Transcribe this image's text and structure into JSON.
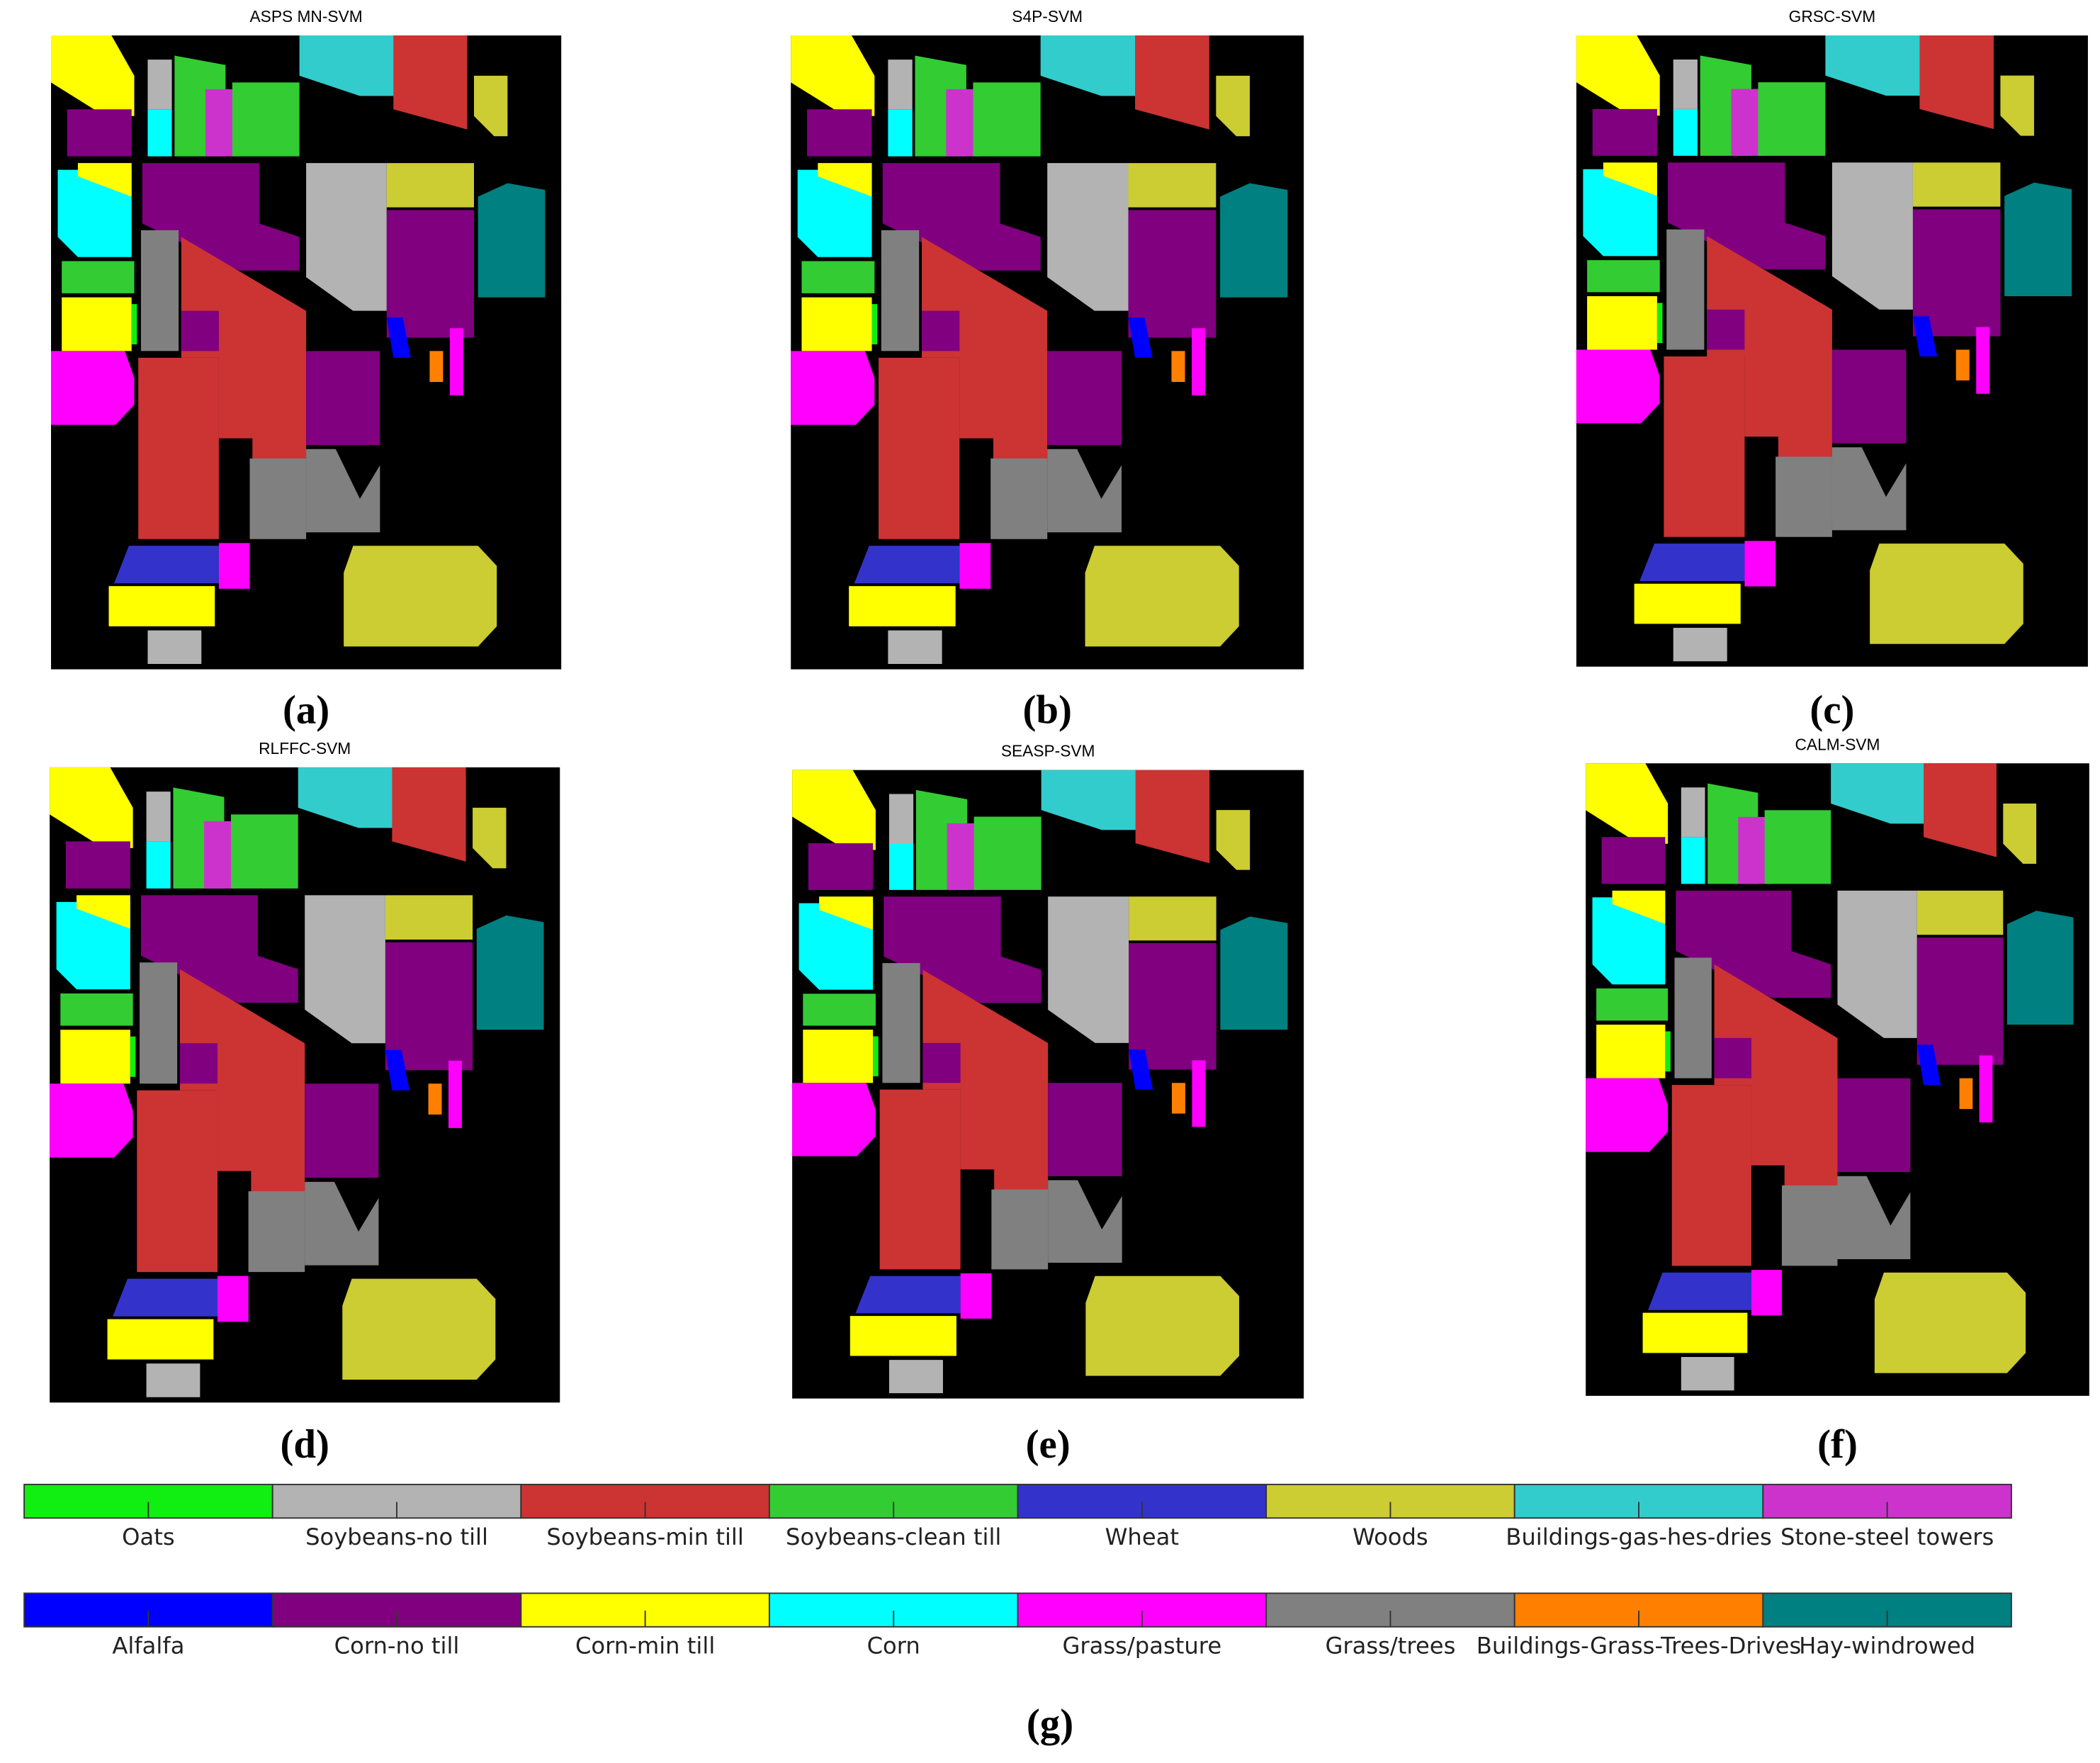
{
  "panels": [
    {
      "title": "ASPS MN-SVM",
      "caption": "(a)"
    },
    {
      "title": "S4P-SVM",
      "caption": "(b)"
    },
    {
      "title": "GRSC-SVM",
      "caption": "(c)"
    },
    {
      "title": "RLFFC-SVM",
      "caption": "(d)"
    },
    {
      "title": "SEASP-SVM",
      "caption": "(e)"
    },
    {
      "title": "CALM-SVM",
      "caption": "(f)"
    }
  ],
  "legend": {
    "caption": "(g)",
    "rows": [
      [
        {
          "name": "Oats",
          "color": "#11ee11"
        },
        {
          "name": "Soybeans-no till",
          "color": "#b3b3b3"
        },
        {
          "name": "Soybeans-min till",
          "color": "#cc3333"
        },
        {
          "name": "Soybeans-clean till",
          "color": "#33cc33"
        },
        {
          "name": "Wheat",
          "color": "#3333cc"
        },
        {
          "name": "Woods",
          "color": "#cccc33"
        },
        {
          "name": "Buildings-gas-hes-dries",
          "color": "#33cccc"
        },
        {
          "name": "Stone-steel towers",
          "color": "#cc33cc"
        }
      ],
      [
        {
          "name": "Alfalfa",
          "color": "#0000ff"
        },
        {
          "name": "Corn-no till",
          "color": "#800080"
        },
        {
          "name": "Corn-min till",
          "color": "#ffff00"
        },
        {
          "name": "Corn",
          "color": "#00ffff"
        },
        {
          "name": "Grass/pasture",
          "color": "#ff00ff"
        },
        {
          "name": "Grass/trees",
          "color": "#808080"
        },
        {
          "name": "Buildings-Grass-Trees-Drives",
          "color": "#ff8000"
        },
        {
          "name": "Hay-windrowed",
          "color": "#008080"
        }
      ]
    ]
  }
}
